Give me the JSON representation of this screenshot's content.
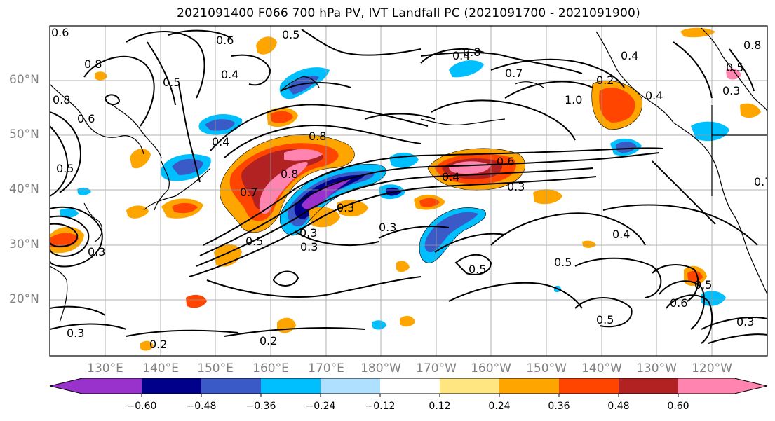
{
  "title": "2021091400 F066 700 hPa PV, IVT Landfall PC (2021091700 - 2021091900)",
  "lat_labels": [
    "60°N",
    "50°N",
    "40°N",
    "30°N",
    "20°N"
  ],
  "lon_labels": [
    "130°E",
    "140°E",
    "150°E",
    "160°E",
    "170°E",
    "180°W",
    "170°W",
    "160°W",
    "150°W",
    "140°W",
    "130°W",
    "120°W"
  ],
  "colorbar": {
    "ticks": [
      "−0.60",
      "−0.48",
      "−0.36",
      "−0.24",
      "−0.12",
      "0.12",
      "0.24",
      "0.36",
      "0.48",
      "0.60"
    ],
    "colors": [
      "#9932cc",
      "#00008b",
      "#3a5bc7",
      "#00bfff",
      "#b0e0ff",
      "#ffffff",
      "#ffe680",
      "#ffa500",
      "#ff4500",
      "#b22222",
      "#ff85b0"
    ]
  },
  "contour_labels": [
    "0.6",
    "0.5",
    "0.8",
    "0.4",
    "0.5",
    "0.8",
    "0.6",
    "0.4",
    "0.5",
    "0.8",
    "0.7",
    "0.8",
    "0.6",
    "0.4",
    "0.3",
    "0.3",
    "0.5",
    "0.3",
    "0.3",
    "0.2",
    "0.2",
    "0.3",
    "0.6",
    "0.7",
    "1.0",
    "0.4",
    "0.5",
    "0.8",
    "0.4",
    "0.3",
    "0.5",
    "0.5",
    "0.6",
    "0.5",
    "0.3",
    "0.3",
    "0.3",
    "0.5",
    "0.4",
    "0.4",
    "0.2",
    "0.7",
    "0.8"
  ]
}
